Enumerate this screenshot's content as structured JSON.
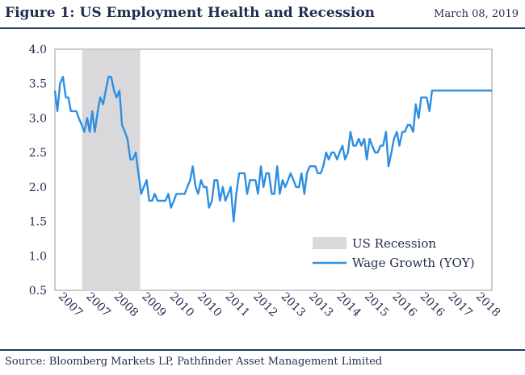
{
  "header": {
    "title": "Figure 1: US Employment Health and Recession",
    "date": "March 08, 2019"
  },
  "source": "Source: Bloomberg Markets LP, Pathfinder Asset Management Limited",
  "colors": {
    "line": "#2e8fe0",
    "recession": "#d9d9dc",
    "text": "#1f2d4e",
    "rule": "#1f3a64"
  },
  "chart_data": {
    "type": "line",
    "ylim": [
      0.5,
      4.0
    ],
    "yticks": [
      "0.5",
      "1.0",
      "1.5",
      "2.0",
      "2.5",
      "3.0",
      "3.5",
      "4.0"
    ],
    "xticks": [
      "2007",
      "2007",
      "2008",
      "2009",
      "2010",
      "2010",
      "2011",
      "2012",
      "2013",
      "2013",
      "2014",
      "2015",
      "2016",
      "2016",
      "2017",
      "2018"
    ],
    "xlim": [
      2006.9,
      2018.95
    ],
    "grid": false,
    "legend_position": "bottom-right",
    "recession": {
      "name": "US Recession",
      "start": 2007.65,
      "end": 2009.25
    },
    "series": [
      {
        "name": "Wage Growth (YOY)",
        "x": [
          2006.9,
          2006.97,
          2007.04,
          2007.12,
          2007.2,
          2007.27,
          2007.34,
          2007.42,
          2007.49,
          2007.56,
          2007.64,
          2007.71,
          2007.79,
          2007.86,
          2007.93,
          2008.0,
          2008.08,
          2008.15,
          2008.23,
          2008.3,
          2008.38,
          2008.45,
          2008.53,
          2008.6,
          2008.68,
          2008.75,
          2008.83,
          2008.9,
          2008.98,
          2009.05,
          2009.13,
          2009.2,
          2009.28,
          2009.35,
          2009.43,
          2009.5,
          2009.58,
          2009.65,
          2009.73,
          2009.8,
          2009.88,
          2009.95,
          2010.03,
          2010.1,
          2010.18,
          2010.25,
          2010.33,
          2010.4,
          2010.48,
          2010.55,
          2010.63,
          2010.7,
          2010.78,
          2010.85,
          2010.93,
          2011.0,
          2011.08,
          2011.15,
          2011.23,
          2011.3,
          2011.38,
          2011.45,
          2011.53,
          2011.6,
          2011.68,
          2011.75,
          2011.83,
          2011.9,
          2011.98,
          2012.05,
          2012.13,
          2012.2,
          2012.28,
          2012.35,
          2012.43,
          2012.5,
          2012.58,
          2012.65,
          2012.73,
          2012.8,
          2012.88,
          2012.95,
          2013.03,
          2013.1,
          2013.18,
          2013.25,
          2013.33,
          2013.4,
          2013.48,
          2013.55,
          2013.63,
          2013.7,
          2013.78,
          2013.85,
          2013.93,
          2014.0,
          2014.08,
          2014.15,
          2014.23,
          2014.3,
          2014.38,
          2014.45,
          2014.53,
          2014.6,
          2014.68,
          2014.75,
          2014.83,
          2014.9,
          2014.98,
          2015.05,
          2015.13,
          2015.2,
          2015.28,
          2015.35,
          2015.43,
          2015.5,
          2015.58,
          2015.65,
          2015.73,
          2015.8,
          2015.88,
          2015.95,
          2016.03,
          2016.1,
          2016.18,
          2016.25,
          2016.33,
          2016.4,
          2016.48,
          2016.55,
          2016.63,
          2016.7,
          2016.78,
          2016.85,
          2016.93,
          2017.0,
          2017.08,
          2017.15,
          2017.23,
          2017.3,
          2017.38,
          2017.45,
          2017.53,
          2017.6,
          2017.68,
          2017.75,
          2017.83,
          2017.9,
          2017.98,
          2018.05,
          2018.13,
          2018.2,
          2018.28,
          2018.35,
          2018.43,
          2018.5,
          2018.58,
          2018.65,
          2018.73,
          2018.8,
          2018.88,
          2018.95
        ],
        "values": [
          3.4,
          3.1,
          3.5,
          3.6,
          3.3,
          3.3,
          3.1,
          3.1,
          3.1,
          3.0,
          2.9,
          2.8,
          3.0,
          2.8,
          3.1,
          2.8,
          3.1,
          3.3,
          3.2,
          3.4,
          3.6,
          3.6,
          3.4,
          3.3,
          3.4,
          2.9,
          2.8,
          2.7,
          2.4,
          2.4,
          2.5,
          2.2,
          1.9,
          2.0,
          2.1,
          1.8,
          1.8,
          1.9,
          1.8,
          1.8,
          1.8,
          1.8,
          1.9,
          1.7,
          1.8,
          1.9,
          1.9,
          1.9,
          1.9,
          2.0,
          2.1,
          2.3,
          2.0,
          1.9,
          2.1,
          2.0,
          2.0,
          1.7,
          1.8,
          2.1,
          2.1,
          1.8,
          2.0,
          1.8,
          1.9,
          2.0,
          1.5,
          1.9,
          2.2,
          2.2,
          2.2,
          1.9,
          2.1,
          2.1,
          2.1,
          1.9,
          2.3,
          2.0,
          2.2,
          2.2,
          1.9,
          1.9,
          2.3,
          1.9,
          2.1,
          2.0,
          2.1,
          2.2,
          2.1,
          2.0,
          2.0,
          2.2,
          1.9,
          2.2,
          2.3,
          2.3,
          2.3,
          2.2,
          2.2,
          2.3,
          2.5,
          2.4,
          2.5,
          2.5,
          2.4,
          2.5,
          2.6,
          2.4,
          2.5,
          2.8,
          2.6,
          2.6,
          2.7,
          2.6,
          2.7,
          2.4,
          2.7,
          2.6,
          2.5,
          2.5,
          2.6,
          2.6,
          2.8,
          2.3,
          2.5,
          2.7,
          2.8,
          2.6,
          2.8,
          2.8,
          2.9,
          2.9,
          2.8,
          3.2,
          3.0,
          3.3,
          3.3,
          3.3,
          3.1,
          3.4,
          3.4,
          3.4,
          3.4,
          3.4,
          3.4,
          3.4,
          3.4,
          3.4,
          3.4,
          3.4,
          3.4,
          3.4,
          3.4,
          3.4,
          3.4,
          3.4,
          3.4,
          3.4,
          3.4,
          3.4,
          3.4,
          3.4
        ]
      }
    ]
  }
}
